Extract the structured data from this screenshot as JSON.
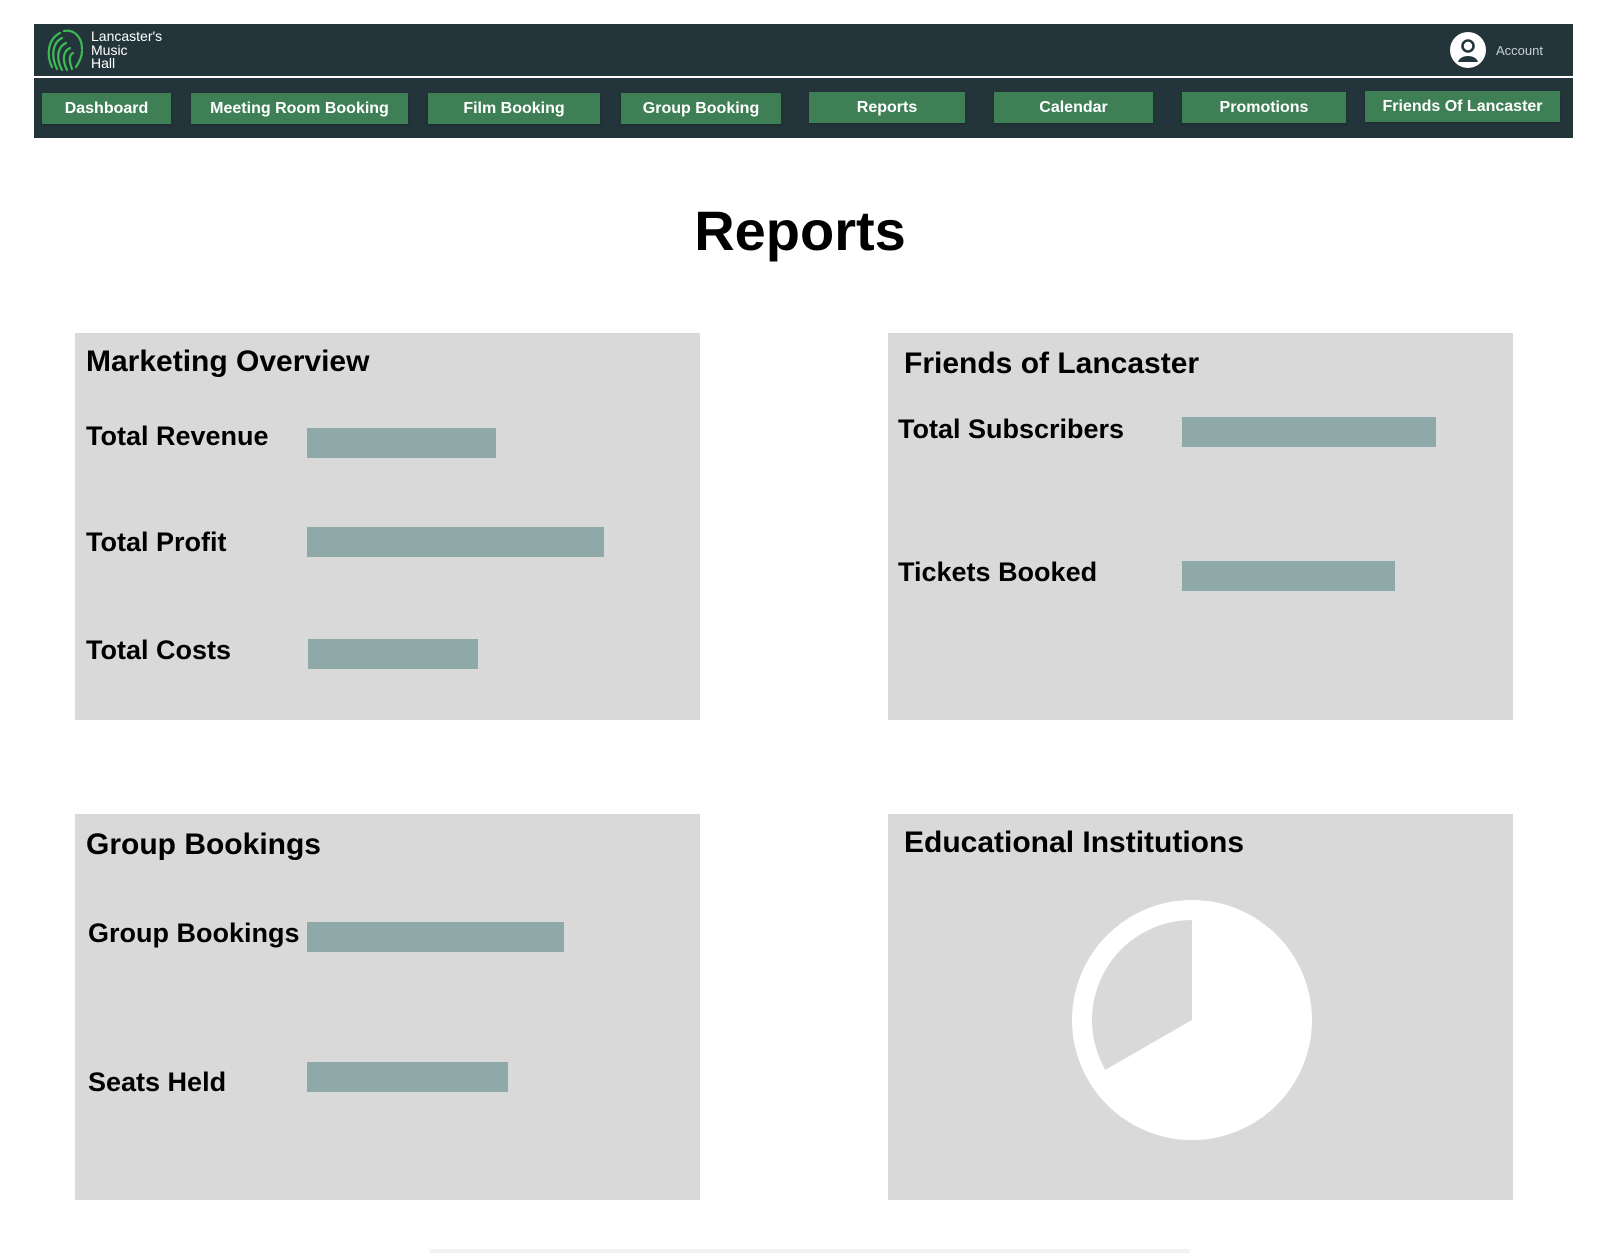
{
  "header": {
    "logo": {
      "line1": "Lancaster's",
      "line2": "Music",
      "line3": "Hall",
      "icon": "fingerprint-logo-icon"
    },
    "account": {
      "label": "Account",
      "icon": "user-circle-icon"
    }
  },
  "nav": {
    "items": [
      {
        "label": "Dashboard"
      },
      {
        "label": "Meeting Room Booking"
      },
      {
        "label": "Film Booking"
      },
      {
        "label": "Group Booking"
      },
      {
        "label": "Reports"
      },
      {
        "label": "Calendar"
      },
      {
        "label": "Promotions"
      },
      {
        "label": "Friends Of Lancaster"
      }
    ]
  },
  "page": {
    "title": "Reports"
  },
  "cards": {
    "marketing": {
      "title": "Marketing Overview",
      "metrics": [
        {
          "label": "Total Revenue",
          "fraction": 0.35
        },
        {
          "label": "Total Profit",
          "fraction": 0.55
        },
        {
          "label": "Total Costs",
          "fraction": 0.315
        }
      ]
    },
    "friends": {
      "title": "Friends of Lancaster",
      "metrics": [
        {
          "label": "Total Subscribers",
          "fraction": 0.47
        },
        {
          "label": "Tickets Booked",
          "fraction": 0.395
        }
      ]
    },
    "group": {
      "title": "Group Bookings",
      "metrics": [
        {
          "label": "Group Bookings",
          "fraction": 0.475
        },
        {
          "label": "Seats Held",
          "fraction": 0.372
        }
      ]
    },
    "education": {
      "title": "Educational Institutions",
      "pie_slice_fraction": 0.333
    }
  },
  "colors": {
    "header_bg": "#23353a",
    "nav_button": "#3e7f56",
    "logo_green": "#3dbb55",
    "card_bg": "#d9d9d9",
    "bar": "#8ea9a7",
    "pie": "#ffffff"
  }
}
